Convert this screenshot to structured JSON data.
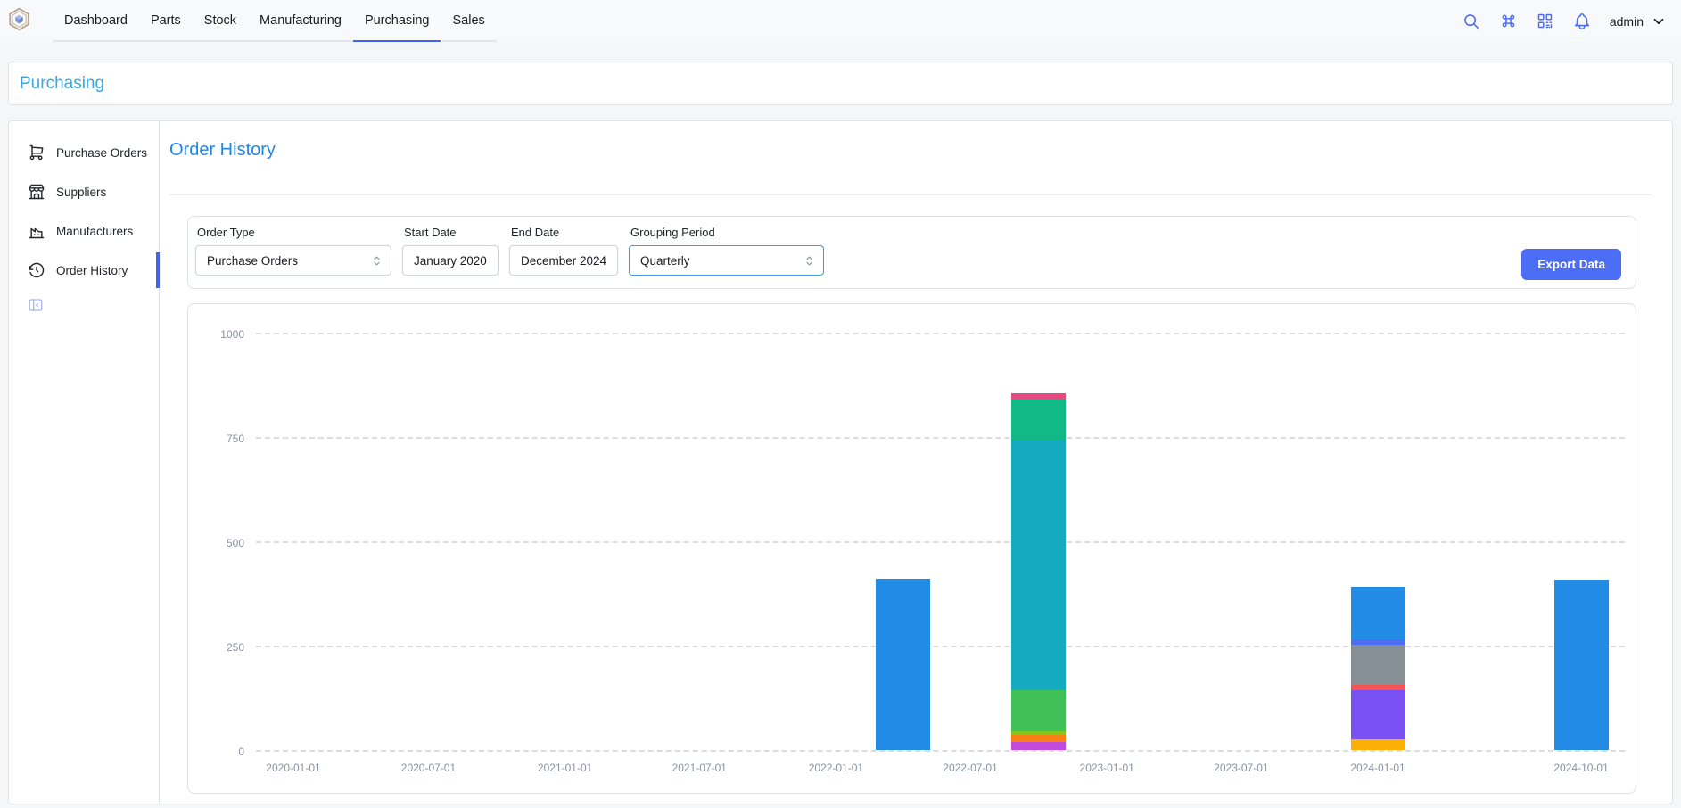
{
  "navbar": {
    "tabs": [
      "Dashboard",
      "Parts",
      "Stock",
      "Manufacturing",
      "Purchasing",
      "Sales"
    ],
    "active_tab": "Purchasing",
    "icons": [
      "search-icon",
      "command-icon",
      "qrcode-icon",
      "bell-icon"
    ],
    "username": "admin"
  },
  "breadcrumb": {
    "label": "Purchasing"
  },
  "sidebar": {
    "items": [
      {
        "label": "Purchase Orders",
        "icon": "cart"
      },
      {
        "label": "Suppliers",
        "icon": "store"
      },
      {
        "label": "Manufacturers",
        "icon": "factory"
      },
      {
        "label": "Order History",
        "icon": "history"
      }
    ],
    "active": "Order History"
  },
  "page": {
    "title": "Order History"
  },
  "filters": {
    "order_type": {
      "label": "Order Type",
      "value": "Purchase Orders"
    },
    "start_date": {
      "label": "Start Date",
      "value": "January 2020"
    },
    "end_date": {
      "label": "End Date",
      "value": "December 2024"
    },
    "grouping": {
      "label": "Grouping Period",
      "value": "Quarterly"
    },
    "export_label": "Export Data"
  },
  "colors": {
    "accent": "#4c6ef5",
    "active_tab_underline": "#4263eb",
    "breadcrumb_link": "#39a7e0",
    "heading": "#2187e7",
    "focused_field_border": "#339af0"
  },
  "chart_data": {
    "type": "bar",
    "stacked": true,
    "legend": "none",
    "grid": "horizontal-dashed",
    "title": "",
    "xlabel": "",
    "ylabel": "",
    "ylim": [
      0,
      1000
    ],
    "yticks": [
      0,
      250,
      500,
      750,
      1000
    ],
    "xticks": [
      "2020-01-01",
      "2020-07-01",
      "2021-01-01",
      "2021-07-01",
      "2022-01-01",
      "2022-07-01",
      "2023-01-01",
      "2023-07-01",
      "2024-01-01",
      "2024-10-01"
    ],
    "bars": [
      {
        "date": "2022-04-01",
        "total": 410,
        "segments": [
          {
            "name": "blue",
            "color": "#228be6",
            "value": 410
          }
        ]
      },
      {
        "date": "2022-10-01",
        "total": 855,
        "segments": [
          {
            "name": "grape",
            "color": "#be4bdb",
            "value": 19
          },
          {
            "name": "orange",
            "color": "#fd7e14",
            "value": 17
          },
          {
            "name": "lime",
            "color": "#82c91e",
            "value": 9
          },
          {
            "name": "green",
            "color": "#40c057",
            "value": 98
          },
          {
            "name": "cyan",
            "color": "#15aabf",
            "value": 601
          },
          {
            "name": "teal",
            "color": "#12b886",
            "value": 98
          },
          {
            "name": "pink",
            "color": "#e64980",
            "value": 13
          }
        ]
      },
      {
        "date": "2024-01-01",
        "total": 392,
        "segments": [
          {
            "name": "yellow",
            "color": "#fab005",
            "value": 26
          },
          {
            "name": "violet",
            "color": "#7950f2",
            "value": 118
          },
          {
            "name": "red",
            "color": "#fa5252",
            "value": 13
          },
          {
            "name": "gray",
            "color": "#868e96",
            "value": 96
          },
          {
            "name": "indigo",
            "color": "#4c6ef5",
            "value": 13
          },
          {
            "name": "blue",
            "color": "#228be6",
            "value": 126
          }
        ]
      },
      {
        "date": "2024-10-01",
        "total": 408,
        "segments": [
          {
            "name": "blue",
            "color": "#228be6",
            "value": 408
          }
        ]
      }
    ]
  }
}
